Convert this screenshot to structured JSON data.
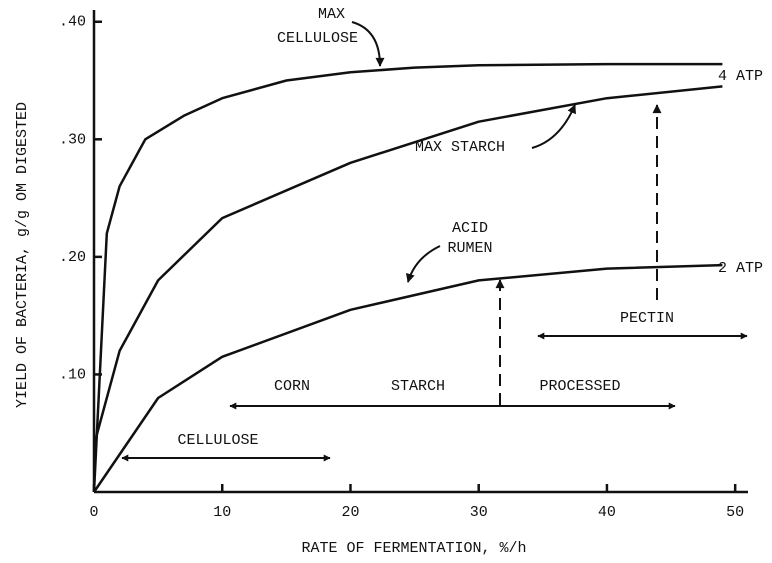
{
  "chart_data": {
    "type": "line",
    "x_label": "RATE OF FERMENTATION, %/h",
    "y_label": "YIELD OF BACTERIA, g/g OM DIGESTED",
    "xlim": [
      0,
      51
    ],
    "ylim": [
      0,
      0.41
    ],
    "xticks": [
      0,
      10,
      20,
      30,
      40,
      50
    ],
    "yticks": [
      {
        "value": 0.1,
        "label": ".10"
      },
      {
        "value": 0.2,
        "label": ".20"
      },
      {
        "value": 0.3,
        "label": ".30"
      },
      {
        "value": 0.4,
        "label": ".40"
      }
    ],
    "series": [
      {
        "color": "#111111",
        "x": [
          0,
          1,
          2,
          4,
          7,
          10,
          15,
          20,
          25,
          30,
          40,
          49
        ],
        "values": [
          0,
          0.22,
          0.26,
          0.3,
          0.32,
          0.335,
          0.35,
          0.357,
          0.361,
          0.363,
          0.364,
          0.364
        ]
      },
      {
        "color": "#111111",
        "x": [
          0,
          2,
          5,
          10,
          20,
          30,
          40,
          49
        ],
        "values": [
          0.04,
          0.12,
          0.18,
          0.233,
          0.28,
          0.315,
          0.335,
          0.345
        ]
      },
      {
        "color": "#111111",
        "x": [
          0,
          5,
          10,
          20,
          30,
          40,
          49
        ],
        "values": [
          0,
          0.08,
          0.115,
          0.155,
          0.18,
          0.19,
          0.193
        ]
      }
    ],
    "annotations": [
      "MAX",
      "CELLULOSE",
      "4 ATP",
      "MAX STARCH",
      "ACID",
      "RUMEN",
      "2 ATP",
      "PECTIN",
      "CORN",
      "STARCH",
      "PROCESSED",
      "CELLULOSE"
    ]
  }
}
